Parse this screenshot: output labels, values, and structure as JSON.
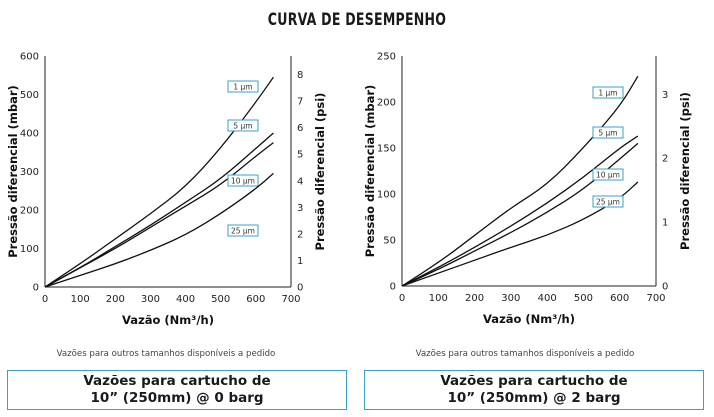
{
  "title": "CURVA DE DESEMPENHO",
  "chart_data": [
    {
      "type": "line",
      "xlabel": "Vazão (Nm³/h)",
      "ylabel": "Pressão diferencial (mbar)",
      "y2label": "Pressão diferencial (psi)",
      "xlim": [
        0,
        700
      ],
      "ylim": [
        0,
        600
      ],
      "y2lim": [
        0,
        8.7
      ],
      "xticks": [
        "0",
        "100",
        "200",
        "300",
        "400",
        "500",
        "600",
        "700"
      ],
      "yticks": [
        "0",
        "100",
        "200",
        "300",
        "400",
        "500",
        "600"
      ],
      "y2ticks": [
        "0",
        "1",
        "2",
        "3",
        "4",
        "5",
        "6",
        "7",
        "8"
      ],
      "grid": false,
      "series": [
        {
          "name": "1 µm",
          "x": [
            0,
            100,
            200,
            300,
            400,
            500,
            600,
            650
          ],
          "y": [
            0,
            60,
            125,
            190,
            260,
            360,
            480,
            545
          ]
        },
        {
          "name": "5 µm",
          "x": [
            0,
            100,
            200,
            300,
            400,
            500,
            600,
            650
          ],
          "y": [
            0,
            50,
            105,
            160,
            220,
            280,
            360,
            400
          ]
        },
        {
          "name": "10 µm",
          "x": [
            0,
            100,
            200,
            300,
            400,
            500,
            600,
            650
          ],
          "y": [
            0,
            50,
            100,
            155,
            210,
            265,
            340,
            375
          ]
        },
        {
          "name": "25 µm",
          "x": [
            0,
            100,
            200,
            300,
            400,
            500,
            600,
            650
          ],
          "y": [
            0,
            30,
            60,
            95,
            135,
            190,
            255,
            295
          ]
        }
      ]
    },
    {
      "type": "line",
      "xlabel": "Vazão (Nm³/h)",
      "ylabel": "Pressão diferencial (mbar)",
      "y2label": "Pressão diferencial (psi)",
      "xlim": [
        0,
        700
      ],
      "ylim": [
        0,
        250
      ],
      "y2lim": [
        0,
        3.6
      ],
      "xticks": [
        "0",
        "100",
        "200",
        "300",
        "400",
        "500",
        "600",
        "700"
      ],
      "yticks": [
        "0",
        "50",
        "100",
        "150",
        "200",
        "250"
      ],
      "y2ticks": [
        "0",
        "1",
        "2",
        "3"
      ],
      "grid": false,
      "series": [
        {
          "name": "1 µm",
          "x": [
            0,
            100,
            200,
            300,
            400,
            500,
            600,
            650
          ],
          "y": [
            0,
            25,
            55,
            85,
            110,
            150,
            195,
            228
          ]
        },
        {
          "name": "5 µm",
          "x": [
            0,
            100,
            200,
            300,
            400,
            500,
            600,
            650
          ],
          "y": [
            0,
            20,
            42,
            65,
            90,
            118,
            150,
            163
          ]
        },
        {
          "name": "10 µm",
          "x": [
            0,
            100,
            200,
            300,
            400,
            500,
            600,
            650
          ],
          "y": [
            0,
            18,
            38,
            58,
            80,
            105,
            138,
            155
          ]
        },
        {
          "name": "25 µm",
          "x": [
            0,
            100,
            200,
            300,
            400,
            500,
            600,
            650
          ],
          "y": [
            0,
            14,
            28,
            42,
            55,
            72,
            95,
            113
          ]
        }
      ]
    }
  ],
  "notes": {
    "left": "Vazões para outros tamanhos disponíveis a pedido",
    "right": "Vazões para outros tamanhos disponíveis a pedido"
  },
  "captions": {
    "left": {
      "line1": "Vazões para cartucho de",
      "line2": "10” (250mm) @ 0 barg"
    },
    "right": {
      "line1": "Vazões para cartucho de",
      "line2": "10” (250mm) @ 2 barg"
    }
  }
}
